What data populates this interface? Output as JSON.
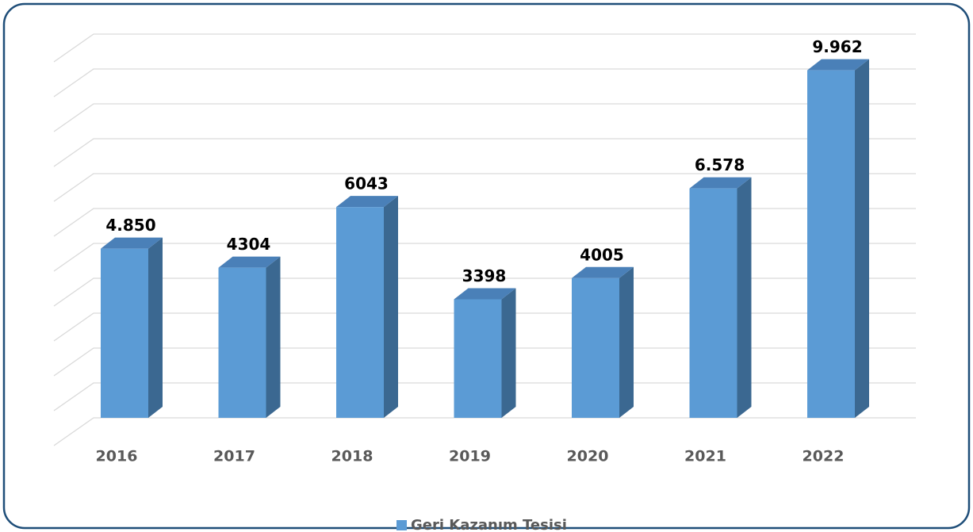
{
  "chart_data": {
    "type": "bar3d",
    "categories": [
      "2016",
      "2017",
      "2018",
      "2019",
      "2020",
      "2021",
      "2022"
    ],
    "series": [
      {
        "name": "Geri Kazanım Tesisi",
        "color": "#5b9bd5",
        "values": [
          4850,
          4304,
          6043,
          3398,
          4005,
          6578,
          9962
        ],
        "value_labels": [
          "4.850",
          "4304",
          "6043",
          "3398",
          "4005",
          "6.578",
          "9.962"
        ]
      }
    ],
    "ylim": [
      0,
      11000
    ],
    "yticks": [
      0,
      1000,
      2000,
      3000,
      4000,
      5000,
      6000,
      7000,
      8000,
      9000,
      10000,
      11000
    ],
    "grid": true,
    "legend": "bottom"
  }
}
